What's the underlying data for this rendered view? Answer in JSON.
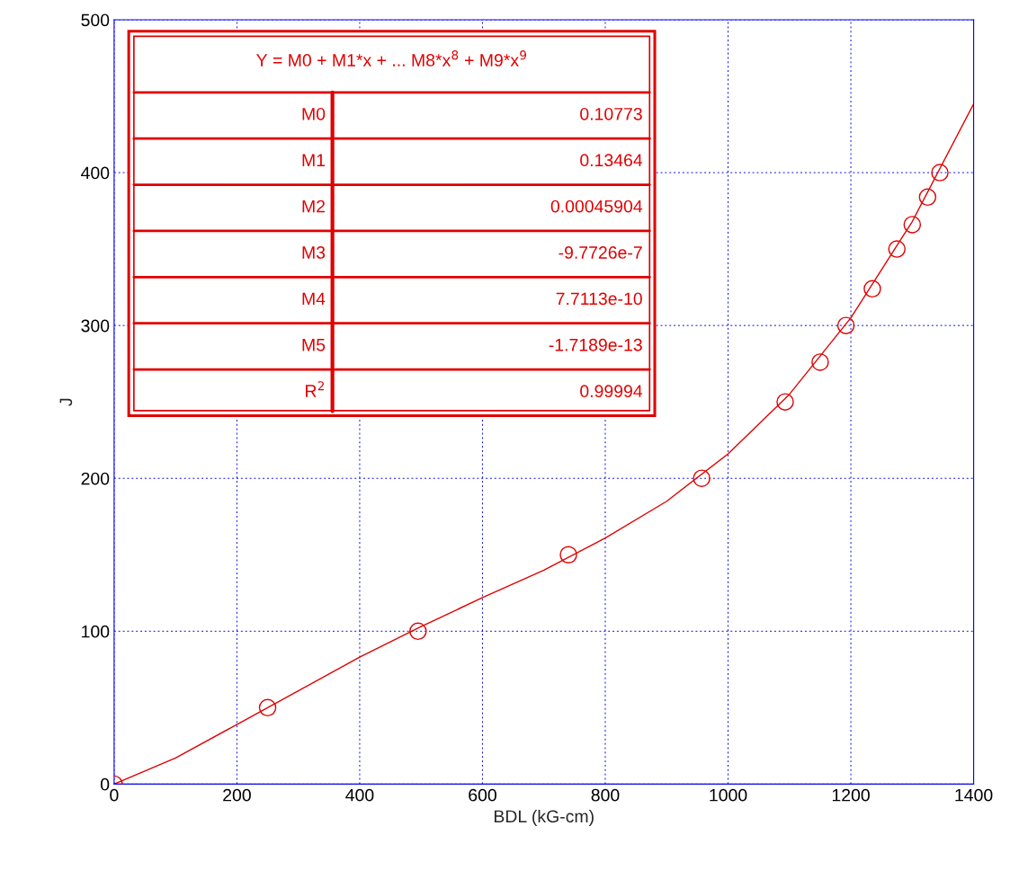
{
  "chart_data": {
    "type": "scatter",
    "xlabel": "BDL (kG-cm)",
    "ylabel": "J",
    "xlim": [
      0,
      1400
    ],
    "xticks": [
      0,
      200,
      400,
      600,
      800,
      1000,
      1200,
      1400
    ],
    "ylim": [
      0,
      500
    ],
    "yticks": [
      0,
      100,
      200,
      300,
      400,
      500
    ],
    "grid": true,
    "series": [
      {
        "marker": "circle",
        "color": "#e00000",
        "x": [
          0,
          250,
          495,
          740,
          957,
          1093,
          1150,
          1192,
          1235,
          1275,
          1300,
          1325,
          1345
        ],
        "values": [
          0,
          50,
          100,
          150,
          200,
          250,
          276,
          300,
          324,
          350,
          366,
          384,
          400
        ]
      },
      {
        "type": "line",
        "color": "#e00000",
        "x": [
          0,
          100,
          200,
          300,
          400,
          500,
          600,
          700,
          800,
          900,
          1000,
          1100,
          1200,
          1300,
          1400
        ],
        "values": [
          0,
          17,
          39,
          61,
          83,
          103,
          122,
          140,
          161,
          185,
          216,
          255,
          305,
          368,
          445
        ]
      }
    ],
    "annotations": [
      "Y = M0 + M1*x + ... M8*x$^{8}$ + M9*x$^{9}$",
      "M0",
      "0.10773",
      "M1",
      "0.13464",
      "M2",
      "0.00045904",
      "M3",
      "-9.7726e-7",
      "M4",
      "7.7113e-10",
      "M5",
      "-1.7189e-13",
      "R$^{2}$",
      "0.99994"
    ]
  }
}
